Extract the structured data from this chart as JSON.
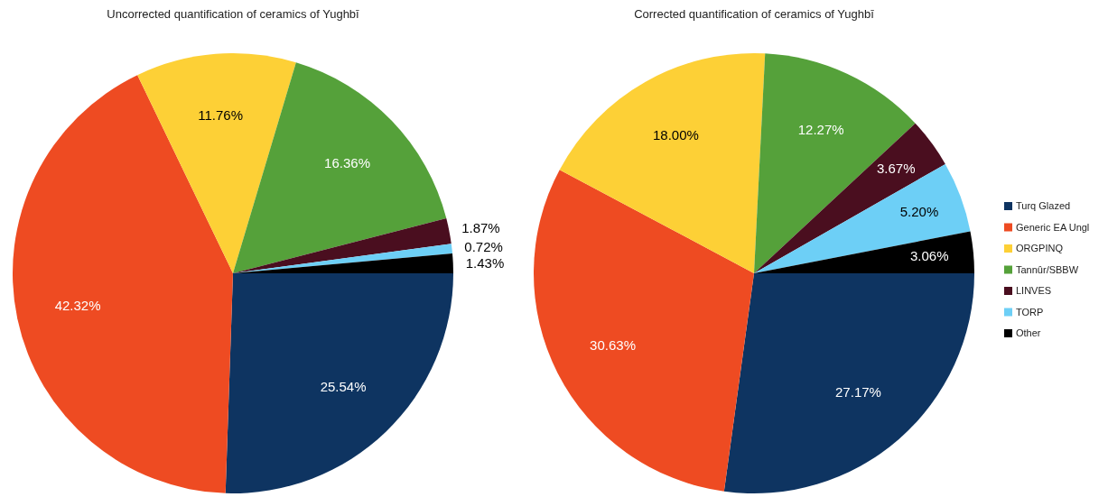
{
  "chart_data": [
    {
      "type": "pie",
      "title": "Uncorrected quantification of ceramics of Yughbī",
      "values": [
        25.54,
        42.32,
        11.76,
        16.36,
        1.87,
        0.72,
        1.43
      ],
      "colors": [
        "#0e3461",
        "#ee4b22",
        "#fdd036",
        "#55a13a",
        "#4a0e1f",
        "#6dcff6",
        "#000000"
      ],
      "value_labels": [
        "25.54%",
        "42.32%",
        "11.76%",
        "16.36%",
        "1.87%",
        "0.72%",
        "1.43%"
      ],
      "legend": false
    },
    {
      "type": "pie",
      "title": "Corrected quantification of ceramics of Yughbī",
      "categories": [
        "Turq Glazed",
        "Generic EA Ungl",
        "ORGPINQ",
        "Tannûr/SBBW",
        "LINVES",
        "TORP",
        "Other"
      ],
      "values": [
        27.17,
        30.63,
        18.0,
        12.27,
        3.67,
        5.2,
        3.06
      ],
      "colors": [
        "#0e3461",
        "#ee4b22",
        "#fdd036",
        "#55a13a",
        "#4a0e1f",
        "#6dcff6",
        "#000000"
      ],
      "value_labels": [
        "27.17%",
        "30.63%",
        "18.00%",
        "12.27%",
        "3.67%",
        "5.20%",
        "3.06%"
      ],
      "legend": "right"
    }
  ]
}
